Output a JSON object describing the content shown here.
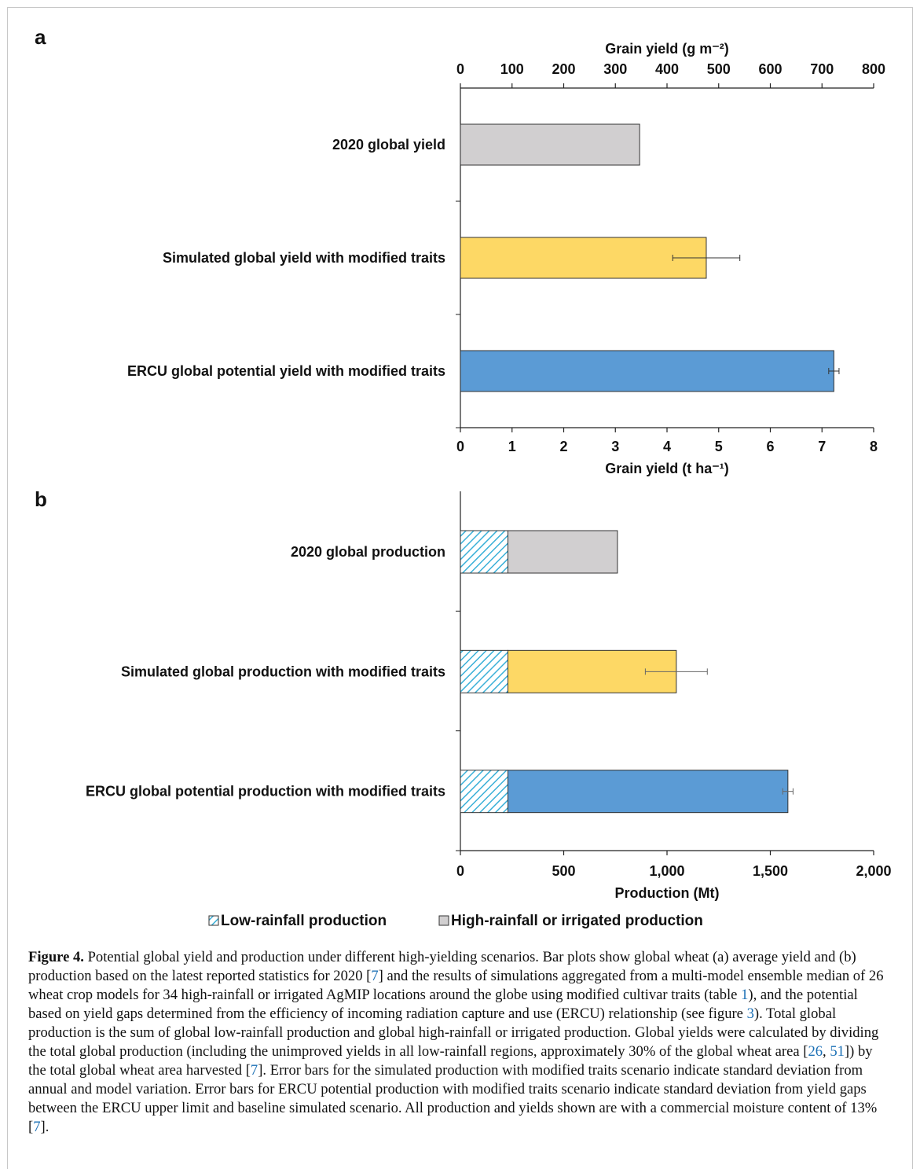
{
  "chart_data": [
    {
      "panel": "a",
      "type": "bar",
      "orientation": "horizontal",
      "categories": [
        "2020 global yield",
        "Simulated global yield with modified traits",
        "ERCU global potential yield with modified traits"
      ],
      "values": [
        3.47,
        4.76,
        7.23
      ],
      "errors": [
        null,
        0.65,
        0.1
      ],
      "colors": [
        "#d1cfd0",
        "#fdd865",
        "#5b9bd5"
      ],
      "xlabel": "Grain yield (t ha⁻¹)",
      "xlim": [
        0,
        8
      ],
      "xticks": [
        "0",
        "1",
        "2",
        "3",
        "4",
        "5",
        "6",
        "7",
        "8"
      ],
      "x2label": "Grain yield (g m⁻²)",
      "x2lim": [
        0,
        800
      ],
      "x2ticks": [
        "0",
        "100",
        "200",
        "300",
        "400",
        "500",
        "600",
        "700",
        "800"
      ],
      "grid": false
    },
    {
      "panel": "b",
      "type": "bar",
      "orientation": "horizontal",
      "stacked": true,
      "categories": [
        "2020 global production",
        "Simulated global production with modified traits",
        "ERCU global potential production with modified traits"
      ],
      "series": [
        {
          "name": "Low-rainfall production",
          "values": [
            230,
            230,
            230
          ],
          "color": "#3ab0d8",
          "pattern": "hatch"
        },
        {
          "name": "High-rainfall or irrigated production",
          "values": [
            530,
            815,
            1355
          ],
          "color": "#d1cfd0"
        }
      ],
      "segment_colors": [
        "#d1cfd0",
        "#fdd865",
        "#5b9bd5"
      ],
      "errors": [
        null,
        150,
        25
      ],
      "xlabel": "Production (Mt)",
      "xlim": [
        0,
        2000
      ],
      "xticks": [
        "0",
        "500",
        "1,000",
        "1,500",
        "2,000"
      ],
      "legend_position": "bottom",
      "grid": false
    }
  ],
  "panel_labels": [
    "a",
    "b"
  ],
  "caption": {
    "label": "Figure 4.",
    "segments": [
      {
        "t": " Potential global yield and production under different high-yielding scenarios. Bar plots show global wheat (a) average yield and (b) production based on the latest reported statistics for 2020 ["
      },
      {
        "t": "7",
        "ref": true
      },
      {
        "t": "] and the results of simulations aggregated from a multi-model ensemble median of 26 wheat crop models for 34 high-rainfall or irrigated AgMIP locations around the globe using modified cultivar traits (table "
      },
      {
        "t": "1",
        "ref": true
      },
      {
        "t": "), and the potential based on yield gaps determined from the efficiency of incoming radiation capture and use (ERCU) relationship (see figure "
      },
      {
        "t": "3",
        "ref": true
      },
      {
        "t": "). Total global production is the sum of global low-rainfall production and global high-rainfall or irrigated production. Global yields were calculated by dividing the total global production (including the unimproved yields in all low-rainfall regions, approximately 30% of the global wheat area ["
      },
      {
        "t": "26",
        "ref": true
      },
      {
        "t": ", "
      },
      {
        "t": "51",
        "ref": true
      },
      {
        "t": "]) by the total global wheat area harvested ["
      },
      {
        "t": "7",
        "ref": true
      },
      {
        "t": "]. Error bars for the simulated production with modified traits scenario indicate standard deviation from annual and model variation. Error bars for ERCU potential production with modified traits scenario indicate standard deviation from yield gaps between the ERCU upper limit and baseline simulated scenario. All production and yields shown are with a commercial moisture content of 13% ["
      },
      {
        "t": "7",
        "ref": true
      },
      {
        "t": "]."
      }
    ]
  }
}
